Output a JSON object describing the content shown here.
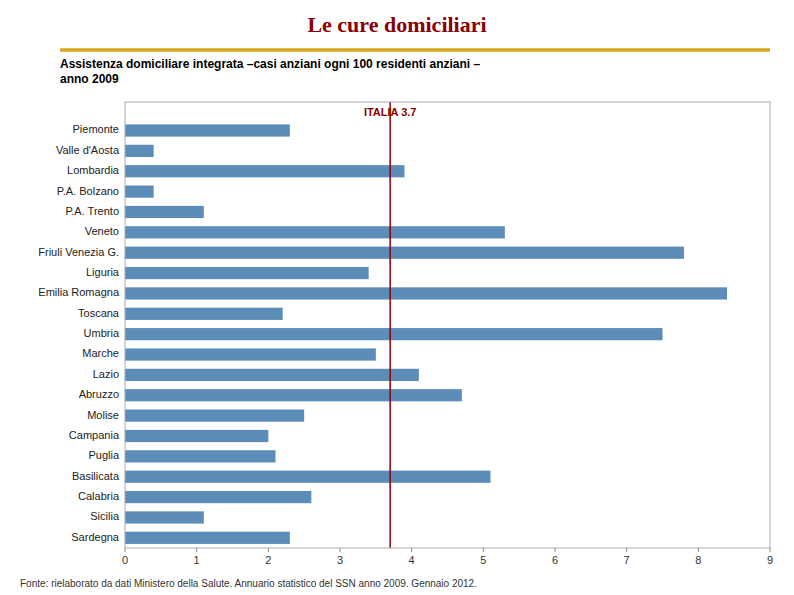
{
  "chart_data": {
    "type": "bar",
    "orientation": "horizontal",
    "title": "Le cure domiciliari",
    "subtitle": "Assistenza domiciliare integrata –casi anziani ogni 100 residenti anziani –\nanno 2009",
    "footer": "Fonte: rielaborato da dati Ministero della Salute. Annuario statistico del SSN anno 2009. Gennaio 2012.",
    "categories": [
      "Piemonte",
      "Valle d'Aosta",
      "Lombardia",
      "P.A. Bolzano",
      "P.A. Trento",
      "Veneto",
      "Friuli Venezia G.",
      "Liguria",
      "Emilia Romagna",
      "Toscana",
      "Umbria",
      "Marche",
      "Lazio",
      "Abruzzo",
      "Molise",
      "Campania",
      "Puglia",
      "Basilicata",
      "Calabria",
      "Sicilia",
      "Sardegna"
    ],
    "values": [
      2.3,
      0.4,
      3.9,
      0.4,
      1.1,
      5.3,
      7.8,
      3.4,
      8.4,
      2.2,
      7.5,
      3.5,
      4.1,
      4.7,
      2.5,
      2.0,
      2.1,
      5.1,
      2.6,
      1.1,
      2.3
    ],
    "color": "#5B8DB8",
    "xlim": [
      0,
      9
    ],
    "xticks": [
      0,
      1,
      2,
      3,
      4,
      5,
      6,
      7,
      8,
      9
    ],
    "grid": false,
    "reference_line": {
      "value": 3.7,
      "label": "ITALIA  3.7",
      "color": "#8B0000"
    }
  }
}
